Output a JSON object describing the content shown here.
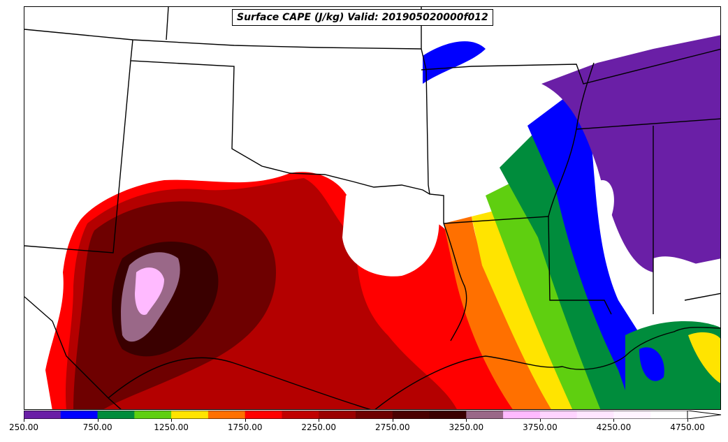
{
  "title": "Surface CAPE (J/kg) Valid: 201905020000f012",
  "colorbar": {
    "tick_labels": [
      "250.00",
      "750.00",
      "1250.00",
      "1750.00",
      "2250.00",
      "2750.00",
      "3250.00",
      "3750.00",
      "4250.00",
      "4750.00"
    ],
    "min": 250,
    "max": 4750,
    "interval": 250,
    "extend": "max",
    "colors": [
      "#6a1fa6",
      "#0000ff",
      "#008c3c",
      "#5fcf10",
      "#ffe400",
      "#ff7000",
      "#ff0000",
      "#c00000",
      "#9a0000",
      "#6e0000",
      "#4a0000",
      "#3a0000",
      "#9a6888",
      "#ffbaff",
      "#ffd4ff",
      "#ffe6ff",
      "#fff4ff",
      "#ffffff"
    ]
  },
  "map": {
    "variable": "Surface CAPE",
    "units": "J/kg",
    "region": "Southern Plains / Gulf Coast",
    "background": "#ffffff",
    "boundary_color": "#000000"
  }
}
